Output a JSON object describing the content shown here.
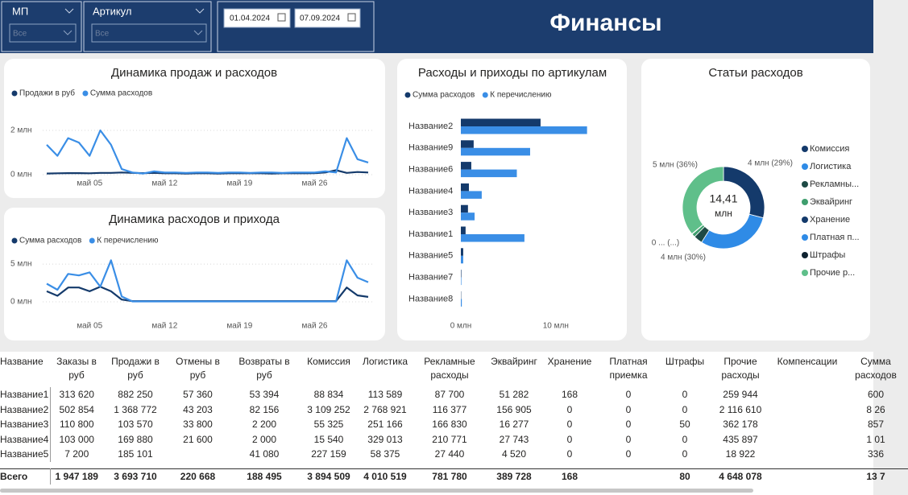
{
  "header": {
    "title": "Финансы",
    "filters": [
      {
        "label": "МП",
        "value": "Все"
      },
      {
        "label": "Артикул",
        "value": "Все"
      }
    ],
    "date_from": "01.04.2024",
    "date_to": "07.09.2024"
  },
  "chart_data": [
    {
      "type": "line",
      "title": "Динамика продаж и расходов",
      "categories": [
        null,
        null,
        null,
        null,
        "май 05",
        null,
        null,
        null,
        null,
        null,
        null,
        "май 12",
        null,
        null,
        null,
        null,
        null,
        null,
        "май 19",
        null,
        null,
        null,
        null,
        null,
        null,
        "май 26",
        null,
        null,
        null,
        null,
        null
      ],
      "series": [
        {
          "name": "Продажи в руб",
          "color": "#143a6b",
          "values": [
            0.05,
            0.06,
            0.07,
            0.07,
            0.06,
            0.08,
            0.08,
            0.1,
            0.08,
            0.07,
            0.08,
            0.06,
            0.06,
            0.05,
            0.06,
            0.06,
            0.05,
            0.06,
            0.07,
            0.06,
            0.06,
            0.05,
            0.06,
            0.07,
            0.06,
            0.07,
            0.1,
            0.2,
            0.08,
            0.12,
            0.1
          ]
        },
        {
          "name": "Сумма расходов",
          "color": "#3a8ee6",
          "values": [
            1.35,
            0.85,
            1.65,
            1.45,
            0.85,
            2.0,
            1.35,
            0.25,
            0.1,
            0.05,
            0.15,
            0.1,
            0.1,
            0.08,
            0.1,
            0.1,
            0.08,
            0.1,
            0.1,
            0.08,
            0.1,
            0.1,
            0.08,
            0.1,
            0.1,
            0.1,
            0.15,
            0.1,
            1.65,
            0.7,
            0.55
          ]
        }
      ],
      "ylim": [
        0,
        2.8
      ],
      "yticks": [
        {
          "value": 0,
          "label": "0 млн"
        },
        {
          "value": 2,
          "label": "2 млн"
        }
      ],
      "grid": true
    },
    {
      "type": "line",
      "title": "Динамика расходов и прихода",
      "categories": [
        null,
        null,
        null,
        null,
        "май 05",
        null,
        null,
        null,
        null,
        null,
        null,
        "май 12",
        null,
        null,
        null,
        null,
        null,
        null,
        "май 19",
        null,
        null,
        null,
        null,
        null,
        null,
        "май 26",
        null,
        null,
        null,
        null,
        null
      ],
      "series": [
        {
          "name": "Сумма расходов",
          "color": "#143a6b",
          "values": [
            1.4,
            0.8,
            1.9,
            1.9,
            1.4,
            2.0,
            1.4,
            0.3,
            0.1,
            0.1,
            0.1,
            0.1,
            0.1,
            0.1,
            0.1,
            0.1,
            0.1,
            0.1,
            0.1,
            0.1,
            0.1,
            0.1,
            0.1,
            0.1,
            0.1,
            0.1,
            0.1,
            0.1,
            1.9,
            0.85,
            0.65
          ]
        },
        {
          "name": "К перечислению",
          "color": "#3a8ee6",
          "values": [
            2.4,
            1.6,
            3.7,
            3.5,
            3.9,
            2.0,
            5.5,
            0.7,
            0.05,
            0.05,
            0.05,
            0.05,
            0.05,
            0.05,
            0.05,
            0.05,
            0.05,
            0.05,
            0.05,
            0.05,
            0.05,
            0.05,
            0.05,
            0.05,
            0.05,
            0.05,
            0.05,
            0.05,
            5.5,
            3.2,
            2.6
          ]
        }
      ],
      "ylim": [
        0,
        6.5
      ],
      "yticks": [
        {
          "value": 0,
          "label": "0 млн"
        },
        {
          "value": 5,
          "label": "5 млн"
        }
      ],
      "grid": true
    },
    {
      "type": "hbar",
      "title": "Расходы и приходы по артикулам",
      "categories": [
        "Название2",
        "Название9",
        "Название6",
        "Название4",
        "Название3",
        "Название1",
        "Название5",
        "Название7",
        "Название8"
      ],
      "series": [
        {
          "name": "Сумма расходов",
          "color": "#143a6b",
          "values": [
            8.4,
            1.35,
            1.1,
            0.85,
            0.75,
            0.5,
            0.25,
            0.05,
            0.03
          ]
        },
        {
          "name": "К перечислению",
          "color": "#3a8ee6",
          "values": [
            13.3,
            7.3,
            5.9,
            2.2,
            1.45,
            6.7,
            0.25,
            0.05,
            0.1
          ]
        }
      ],
      "xlim": [
        0,
        13.5
      ],
      "xticks": [
        {
          "value": 0,
          "label": "0 млн"
        },
        {
          "value": 10,
          "label": "10 млн"
        }
      ]
    },
    {
      "type": "donut",
      "title": "Статьи расходов",
      "center_label": "14,41",
      "center_unit": "млн",
      "categories": [
        "Комиссия",
        "Логистика",
        "Рекламны...",
        "Эквайринг",
        "Хранение",
        "Платная п...",
        "Штрафы",
        "Прочие р..."
      ],
      "values": [
        4.18,
        4.32,
        0.5,
        0.2,
        0.01,
        0.005,
        0.005,
        5.19
      ],
      "value_labels": [
        "4 млн (29%)",
        "4 млн (30%)",
        null,
        null,
        null,
        null,
        "0 ... (...)",
        "5 млн (36%)"
      ],
      "colors": [
        "#143a6b",
        "#2f8be6",
        "#1e4a45",
        "#3f9e6e",
        "#143a6b",
        "#2f8be6",
        "#0f2230",
        "#5fbf8a"
      ]
    }
  ],
  "table": {
    "columns": [
      "Название",
      "Заказы в руб",
      "Продажи в руб",
      "Отмены в руб",
      "Возвраты в руб",
      "Комиссия",
      "Логистика",
      "Рекламные расходы",
      "Эквайринг",
      "Хранение",
      "Платная приемка",
      "Штрафы",
      "Прочие расходы",
      "Компенсации",
      "Сумма расходов"
    ],
    "rows": [
      [
        "Название1",
        "313 620",
        "882 250",
        "57 360",
        "53 394",
        "88 834",
        "113 589",
        "87 700",
        "51 282",
        "168",
        "0",
        "0",
        "259 944",
        null,
        "600"
      ],
      [
        "Название2",
        "502 854",
        "1 368 772",
        "43 203",
        "82 156",
        "3 109 252",
        "2 768 921",
        "116 377",
        "156 905",
        "0",
        "0",
        "0",
        "2 116 610",
        null,
        "8 26"
      ],
      [
        "Название3",
        "110 800",
        "103 570",
        "33 800",
        "2 200",
        "55 325",
        "251 166",
        "166 830",
        "16 277",
        "0",
        "0",
        "50",
        "362 178",
        null,
        "857"
      ],
      [
        "Название4",
        "103 000",
        "169 880",
        "21 600",
        "2 000",
        "15 540",
        "329 013",
        "210 771",
        "27 743",
        "0",
        "0",
        "0",
        "435 897",
        null,
        "1 01"
      ],
      [
        "Название5",
        "7 200",
        "185 101",
        null,
        "41 080",
        "227 159",
        "58 375",
        "27 440",
        "4 520",
        "0",
        "0",
        "0",
        "18 922",
        null,
        "336"
      ]
    ],
    "total": [
      "Всего",
      "1 947 189",
      "3 693 710",
      "220 668",
      "188 495",
      "3 894 509",
      "4 010 519",
      "781 780",
      "389 728",
      "168",
      null,
      "80",
      "4 648 078",
      null,
      "13 7"
    ]
  }
}
